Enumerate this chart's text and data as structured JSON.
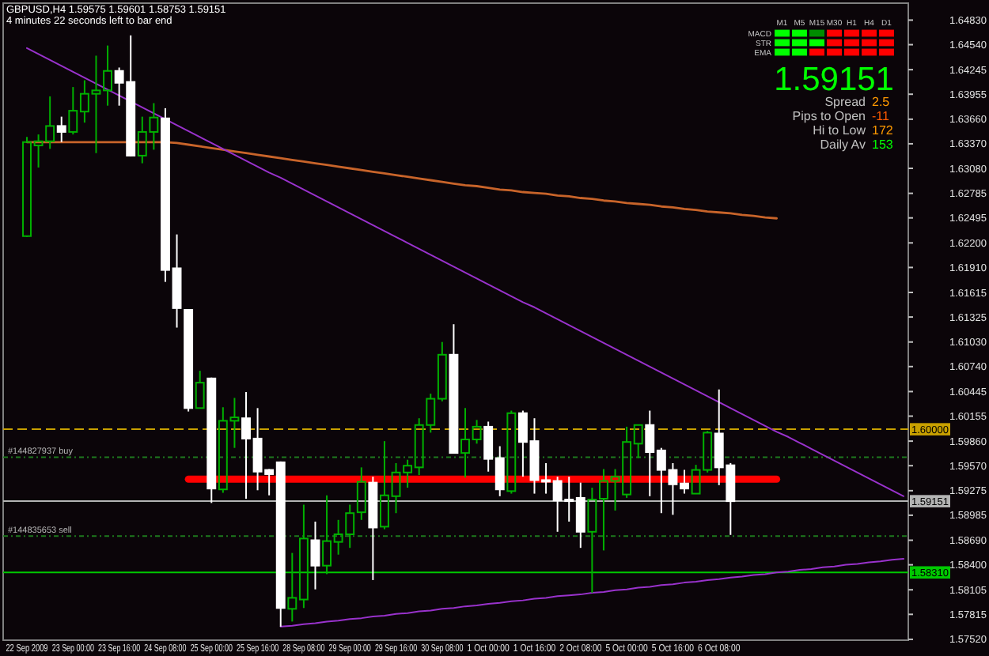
{
  "chart_data": [
    {
      "type": "candlestick",
      "title": "GBPUSD,H4 1.59575 1.59601 1.58753 1.59151",
      "subtitle": "4 minutes 22 seconds left to bar end",
      "categories": [
        "22 Sep 2009",
        null,
        null,
        null,
        "23 Sep 00:00",
        null,
        null,
        null,
        "23 Sep 16:00",
        null,
        null,
        null,
        "24 Sep 08:00",
        null,
        null,
        null,
        "25 Sep 00:00",
        null,
        null,
        null,
        "25 Sep 16:00",
        null,
        null,
        null,
        "28 Sep 08:00",
        null,
        null,
        null,
        "29 Sep 00:00",
        null,
        null,
        null,
        "29 Sep 16:00",
        null,
        null,
        null,
        "30 Sep 08:00",
        null,
        null,
        null,
        "1 Oct 00:00",
        null,
        null,
        null,
        "1 Oct 16:00",
        null,
        null,
        null,
        "2 Oct 08:00",
        null,
        null,
        null,
        "5 Oct 00:00",
        null,
        null,
        null,
        "5 Oct 16:00",
        null,
        null,
        null,
        "6 Oct 08:00",
        null,
        null,
        null,
        null,
        null,
        null,
        null,
        null,
        null,
        null,
        null,
        null,
        null,
        null,
        null,
        null
      ],
      "ohlc": [
        [
          1.6228,
          1.6345,
          1.6227,
          1.6339
        ],
        [
          1.6335,
          1.6348,
          1.6309,
          1.634
        ],
        [
          1.634,
          1.6393,
          1.6331,
          1.6358
        ],
        [
          1.6358,
          1.6369,
          1.6339,
          1.6351
        ],
        [
          1.6351,
          1.6404,
          1.6348,
          1.6376
        ],
        [
          1.6375,
          1.6412,
          1.6362,
          1.6396
        ],
        [
          1.6396,
          1.6441,
          1.6326,
          1.64
        ],
        [
          1.64,
          1.6453,
          1.6382,
          1.6423
        ],
        [
          1.6423,
          1.6427,
          1.6382,
          1.6409
        ],
        [
          1.641,
          1.6465,
          1.6322,
          1.6323
        ],
        [
          1.6323,
          1.6369,
          1.6314,
          1.6351
        ],
        [
          1.6351,
          1.6385,
          1.633,
          1.6368
        ],
        [
          1.6367,
          1.6379,
          1.6174,
          1.6188
        ],
        [
          1.619,
          1.623,
          1.612,
          1.6143
        ],
        [
          1.6141,
          1.6141,
          1.6021,
          1.6025
        ],
        [
          1.6025,
          1.6069,
          1.6025,
          1.6055
        ],
        [
          1.606,
          1.6061,
          1.5913,
          1.593
        ],
        [
          1.5929,
          1.6026,
          1.5925,
          1.601
        ],
        [
          1.601,
          1.6037,
          1.5978,
          1.6014
        ],
        [
          1.6013,
          1.6044,
          1.5918,
          1.5989
        ],
        [
          1.5989,
          1.6025,
          1.5928,
          1.595
        ],
        [
          1.5952,
          1.5953,
          1.5922,
          1.5947
        ],
        [
          1.5961,
          1.5962,
          1.5767,
          1.5789
        ],
        [
          1.5788,
          1.5854,
          1.5773,
          1.5801
        ],
        [
          1.5799,
          1.5911,
          1.5789,
          1.5871
        ],
        [
          1.5869,
          1.5891,
          1.5811,
          1.5839
        ],
        [
          1.5839,
          1.5922,
          1.5829,
          1.5868
        ],
        [
          1.5867,
          1.5893,
          1.5852,
          1.5876
        ],
        [
          1.5876,
          1.5911,
          1.586,
          1.5901
        ],
        [
          1.5902,
          1.5955,
          1.5893,
          1.5938
        ],
        [
          1.5937,
          1.5944,
          1.5822,
          1.5884
        ],
        [
          1.5885,
          1.5986,
          1.5882,
          1.5922
        ],
        [
          1.5921,
          1.596,
          1.5901,
          1.5949
        ],
        [
          1.5949,
          1.5964,
          1.5931,
          1.5957
        ],
        [
          1.5955,
          1.6013,
          1.5946,
          1.6005
        ],
        [
          1.6005,
          1.6042,
          1.5996,
          1.6036
        ],
        [
          1.6036,
          1.6103,
          1.6033,
          1.6088
        ],
        [
          1.6088,
          1.6124,
          1.5972,
          1.5972
        ],
        [
          1.5972,
          1.6025,
          1.5943,
          1.5988
        ],
        [
          1.5988,
          1.6011,
          1.5983,
          1.6003
        ],
        [
          1.6003,
          1.6009,
          1.595,
          1.5965
        ],
        [
          1.5966,
          1.598,
          1.5921,
          1.5929
        ],
        [
          1.5927,
          1.6022,
          1.5924,
          1.6019
        ],
        [
          1.6019,
          1.6022,
          1.5944,
          1.5985
        ],
        [
          1.5986,
          1.6013,
          1.5924,
          1.594
        ],
        [
          1.594,
          1.596,
          1.5924,
          1.5939
        ],
        [
          1.5939,
          1.5944,
          1.5879,
          1.5916
        ],
        [
          1.5917,
          1.5944,
          1.5891,
          1.5916
        ],
        [
          1.5919,
          1.5937,
          1.586,
          1.5879
        ],
        [
          1.5879,
          1.5931,
          1.5807,
          1.5917
        ],
        [
          1.5918,
          1.5953,
          1.5857,
          1.5939
        ],
        [
          1.5939,
          1.5953,
          1.5904,
          1.5944
        ],
        [
          1.5923,
          1.6003,
          1.5919,
          1.5985
        ],
        [
          1.5983,
          1.6005,
          1.5966,
          1.6005
        ],
        [
          1.6005,
          1.6022,
          1.5921,
          1.5973
        ],
        [
          1.5975,
          1.5978,
          1.5901,
          1.5952
        ],
        [
          1.5952,
          1.596,
          1.5899,
          1.5935
        ],
        [
          1.5936,
          1.5952,
          1.5924,
          1.593
        ],
        [
          1.5924,
          1.5958,
          1.5924,
          1.5952
        ],
        [
          1.5952,
          1.5998,
          1.5949,
          1.5996
        ],
        [
          1.5995,
          1.6047,
          1.5934,
          1.5955
        ],
        [
          1.59575,
          1.59601,
          1.58753,
          1.59151
        ],
        null,
        null,
        null,
        null,
        null,
        null,
        null,
        null,
        null,
        null,
        null,
        null,
        null,
        null,
        null
      ],
      "colors": [
        "#00b000",
        "#00b000",
        "#00b000",
        "#ffffff",
        "#00b000",
        "#00b000",
        "#00b000",
        "#00b000",
        "#ffffff",
        "#ffffff",
        "#00b000",
        "#00b000",
        "#ffffff",
        "#ffffff",
        "#ffffff",
        "#00b000",
        "#ffffff",
        "#00b000",
        "#00b000",
        "#ffffff",
        "#ffffff",
        "#ffffff",
        "#ffffff",
        "#00b000",
        "#00b000",
        "#ffffff",
        "#00b000",
        "#00b000",
        "#00b000",
        "#00b000",
        "#ffffff",
        "#00b000",
        "#00b000",
        "#00b000",
        "#00b000",
        "#00b000",
        "#00b000",
        "#ffffff",
        "#00b000",
        "#00b000",
        "#ffffff",
        "#ffffff",
        "#00b000",
        "#ffffff",
        "#ffffff",
        "#ffffff",
        "#ffffff",
        "#ffffff",
        "#ffffff",
        "#00b000",
        "#00b000",
        "#00b000",
        "#00b000",
        "#00b000",
        "#ffffff",
        "#ffffff",
        "#ffffff",
        "#ffffff",
        "#00b000",
        "#00b000",
        "#ffffff",
        "#ffffff",
        null,
        null,
        null,
        null,
        null,
        null,
        null,
        null,
        null,
        null,
        null,
        null,
        null,
        null,
        null
      ],
      "series": [
        {
          "type": "line",
          "color": "#c8642a",
          "values": [
            1.6339,
            1.6339,
            1.6339,
            1.6339,
            1.6339,
            1.6339,
            1.6339,
            1.6339,
            1.6339,
            1.6339,
            1.6339,
            1.6339,
            1.6339,
            1.6338,
            1.6336,
            1.6334,
            1.6332,
            1.633,
            1.6328,
            1.6326,
            1.6324,
            1.6322,
            1.632,
            1.6318,
            1.6316,
            1.6314,
            1.6312,
            1.631,
            1.6308,
            1.6306,
            1.6304,
            1.6302,
            1.63,
            1.6298,
            1.6296,
            1.6294,
            1.6292,
            1.629,
            1.6288,
            1.6287,
            1.6285,
            1.6283,
            1.6282,
            1.628,
            1.6279,
            1.6278,
            1.6276,
            1.6275,
            1.6273,
            1.6272,
            1.627,
            1.6269,
            1.6267,
            1.6266,
            1.6265,
            1.6263,
            1.6262,
            1.626,
            1.6259,
            1.6257,
            1.6256,
            1.6255,
            1.6253,
            1.6252,
            1.625,
            1.6249,
            null,
            null,
            null,
            null,
            null,
            null,
            null,
            null,
            null,
            null,
            null
          ]
        },
        {
          "type": "line",
          "color": "#9932cc",
          "values": [
            1.645,
            1.6443,
            1.6436,
            1.6429,
            1.6422,
            1.6415,
            1.6408,
            1.6401,
            1.6394,
            1.6387,
            1.638,
            1.6373,
            1.6366,
            1.6359,
            1.6352,
            1.6345,
            1.6338,
            1.6331,
            1.6324,
            1.6317,
            1.631,
            1.6303,
            1.6297,
            1.629,
            1.6283,
            1.6276,
            1.6269,
            1.6262,
            1.6255,
            1.6248,
            1.6241,
            1.6234,
            1.6227,
            1.622,
            1.6213,
            1.6206,
            1.6199,
            1.6192,
            1.6185,
            1.6178,
            1.6171,
            1.6164,
            1.6157,
            1.615,
            1.6144,
            1.6137,
            1.613,
            1.6123,
            1.6116,
            1.6109,
            1.6102,
            1.6095,
            1.6088,
            1.6081,
            1.6074,
            1.6067,
            1.606,
            1.6053,
            1.6046,
            1.6039,
            1.6032,
            1.6025,
            1.6018,
            1.6011,
            1.6004,
            1.5997,
            1.5991,
            1.5984,
            1.5977,
            1.597,
            1.5963,
            1.5956,
            1.5949,
            1.5942,
            1.5935,
            1.5928,
            1.5921
          ]
        },
        {
          "type": "line",
          "color": "#9932cc",
          "values": [
            null,
            null,
            null,
            null,
            null,
            null,
            null,
            null,
            null,
            null,
            null,
            null,
            null,
            null,
            null,
            null,
            null,
            null,
            null,
            null,
            null,
            null,
            1.5767,
            1.5768,
            1.577,
            1.5771,
            1.5773,
            1.5774,
            1.5776,
            1.5777,
            1.5779,
            1.578,
            1.5782,
            1.5783,
            1.5785,
            1.5786,
            1.5788,
            1.5789,
            1.5791,
            1.5792,
            1.5794,
            1.5795,
            1.5797,
            1.5798,
            1.58,
            1.5801,
            1.5803,
            1.5804,
            1.5805,
            1.5807,
            1.5808,
            1.581,
            1.5811,
            1.5813,
            1.5814,
            1.5816,
            1.5817,
            1.5819,
            1.582,
            1.5822,
            1.5823,
            1.5825,
            1.5826,
            1.5828,
            1.5829,
            1.5831,
            1.5832,
            1.5834,
            1.5835,
            1.5837,
            1.5838,
            1.584,
            1.5841,
            1.5843,
            1.5844,
            1.5846,
            1.5847
          ]
        },
        {
          "type": "line",
          "color": "#ff0000",
          "values": [
            null,
            null,
            null,
            null,
            null,
            null,
            null,
            null,
            null,
            null,
            null,
            null,
            null,
            null,
            1.5941,
            1.5941,
            1.5941,
            1.5941,
            1.5941,
            1.5941,
            1.5941,
            1.5941,
            1.5941,
            1.5941,
            1.5941,
            1.5941,
            1.5941,
            1.5941,
            1.5941,
            1.5941,
            1.5941,
            1.5941,
            1.5941,
            1.5941,
            1.5941,
            1.5941,
            1.5941,
            1.5941,
            1.5941,
            1.5941,
            1.5941,
            1.5941,
            1.5941,
            1.5941,
            1.5941,
            1.5941,
            1.5941,
            1.5941,
            1.5941,
            1.5941,
            1.5941,
            1.5941,
            1.5941,
            1.5941,
            1.5941,
            1.5941,
            1.5941,
            1.5941,
            1.5941,
            1.5941,
            1.5941,
            1.5941,
            1.5941,
            1.5941,
            1.5941,
            1.5941,
            null,
            null,
            null,
            null,
            null,
            null,
            null,
            null,
            null,
            null,
            null
          ]
        }
      ],
      "ylim": [
        1.5751,
        1.6503
      ],
      "yticks": [
        {
          "value": 1.5752,
          "label": "1.57520"
        },
        {
          "value": 1.57815,
          "label": "1.57815"
        },
        {
          "value": 1.58105,
          "label": "1.58105"
        },
        {
          "value": 1.584,
          "label": "1.58400"
        },
        {
          "value": 1.5869,
          "label": "1.58690"
        },
        {
          "value": 1.58985,
          "label": "1.58985"
        },
        {
          "value": 1.59275,
          "label": "1.59275"
        },
        {
          "value": 1.5957,
          "label": "1.59570"
        },
        {
          "value": 1.5986,
          "label": "1.59860"
        },
        {
          "value": 1.60155,
          "label": "1.60155"
        },
        {
          "value": 1.60445,
          "label": "1.60445"
        },
        {
          "value": 1.6074,
          "label": "1.60740"
        },
        {
          "value": 1.6103,
          "label": "1.61030"
        },
        {
          "value": 1.61325,
          "label": "1.61325"
        },
        {
          "value": 1.61615,
          "label": "1.61615"
        },
        {
          "value": 1.6191,
          "label": "1.61910"
        },
        {
          "value": 1.622,
          "label": "1.62200"
        },
        {
          "value": 1.62495,
          "label": "1.62495"
        },
        {
          "value": 1.62785,
          "label": "1.62785"
        },
        {
          "value": 1.6308,
          "label": "1.63080"
        },
        {
          "value": 1.6337,
          "label": "1.63370"
        },
        {
          "value": 1.6366,
          "label": "1.63660"
        },
        {
          "value": 1.63955,
          "label": "1.63955"
        },
        {
          "value": 1.64245,
          "label": "1.64245"
        },
        {
          "value": 1.6454,
          "label": "1.64540"
        },
        {
          "value": 1.6483,
          "label": "1.64830"
        }
      ],
      "ref_lines": [
        {
          "axis": "y",
          "value": 1.6,
          "label": "1.60000",
          "color": "#c8a000",
          "line_style": "dashed"
        },
        {
          "axis": "y",
          "value": 1.5967,
          "label": "#144827937 buy",
          "color": "#1e7a1e",
          "line_style": "dotted"
        },
        {
          "axis": "y",
          "value": 1.59151,
          "label": "1.59151",
          "color": "#b4b4b4"
        },
        {
          "axis": "y",
          "value": 1.5874,
          "label": "#144835653 sell",
          "color": "#1e7a1e",
          "line_style": "dotted"
        },
        {
          "axis": "y",
          "value": 1.5831,
          "label": "1.58310",
          "color": "#00c800"
        }
      ]
    },
    {
      "type": "other",
      "categories": [
        "M1",
        "M5",
        "M15",
        "M30",
        "H1",
        "H4",
        "D1"
      ],
      "y_categories": [
        "MACD",
        "STR",
        "EMA"
      ],
      "colors": [
        "#00ff00",
        "#00ff00",
        "#008c00",
        "#ff0000",
        "#ff0000",
        "#ff0000",
        "#ff0000",
        "#00ff00",
        "#00ff00",
        "#00ff00",
        "#ff0000",
        "#ff0000",
        "#ff0000",
        "#ff0000",
        "#00ff00",
        "#00ff00",
        "#ff0000",
        "#ff0000",
        "#ff0000",
        "#ff0000",
        "#ff0000"
      ],
      "annotations": [
        "1.59151",
        "Spread",
        "2.5",
        "Pips to Open",
        "-11",
        "Hi to Low",
        "172",
        "Daily Av",
        "153"
      ]
    }
  ]
}
